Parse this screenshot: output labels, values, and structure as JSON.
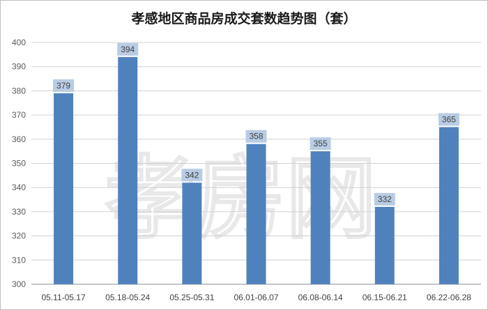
{
  "chart_data": {
    "type": "bar",
    "title": "孝感地区商品房成交套数趋势图（套）",
    "categories": [
      "05.11-05.17",
      "05.18-05.24",
      "05.25-05.31",
      "06.01-06.07",
      "06.08-06.14",
      "06.15-06.21",
      "06.22-06.28"
    ],
    "values": [
      379,
      394,
      342,
      358,
      355,
      332,
      365
    ],
    "ylim": [
      300,
      400
    ],
    "yticks": [
      300,
      310,
      320,
      330,
      340,
      350,
      360,
      370,
      380,
      390,
      400
    ],
    "xlabel": "",
    "ylabel": "",
    "grid": true,
    "legend": "none",
    "bar_color": "#4f81bd",
    "label_bg_color": "#b8cce4"
  },
  "watermark": "孝房网"
}
